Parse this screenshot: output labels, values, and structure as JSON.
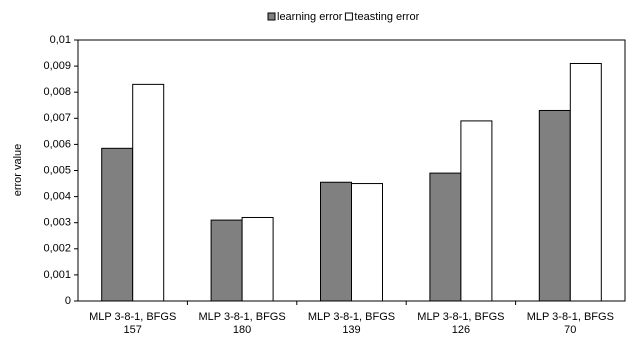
{
  "chart_data": {
    "type": "bar",
    "y_label": "error value",
    "categories": [
      [
        "MLP 3-8-1, BFGS",
        "157"
      ],
      [
        "MLP 3-8-1, BFGS",
        "180"
      ],
      [
        "MLP 3-8-1, BFGS",
        "139"
      ],
      [
        "MLP 3-8-1, BFGS",
        "126"
      ],
      [
        "MLP 3-8-1, BFGS",
        "70"
      ]
    ],
    "series": [
      {
        "name": "learning error",
        "color": "#808080",
        "values": [
          0.00585,
          0.0031,
          0.00455,
          0.0049,
          0.0073
        ]
      },
      {
        "name": "teasting error",
        "color": "#ffffff",
        "values": [
          0.0083,
          0.0032,
          0.0045,
          0.0069,
          0.0091
        ]
      }
    ],
    "ylim": [
      0,
      0.01
    ],
    "yticks": [
      0,
      {
        "value": 0.001,
        "label": "0,001"
      },
      {
        "value": 0.002,
        "label": "0,002"
      },
      {
        "value": 0.003,
        "label": "0,003"
      },
      {
        "value": 0.004,
        "label": "0,004"
      },
      {
        "value": 0.005,
        "label": "0,005"
      },
      {
        "value": 0.006,
        "label": "0,006"
      },
      {
        "value": 0.007,
        "label": "0,007"
      },
      {
        "value": 0.008,
        "label": "0,008"
      },
      {
        "value": 0.009,
        "label": "0,009"
      },
      {
        "value": 0.01,
        "label": "0,01"
      }
    ],
    "legend": "top"
  }
}
